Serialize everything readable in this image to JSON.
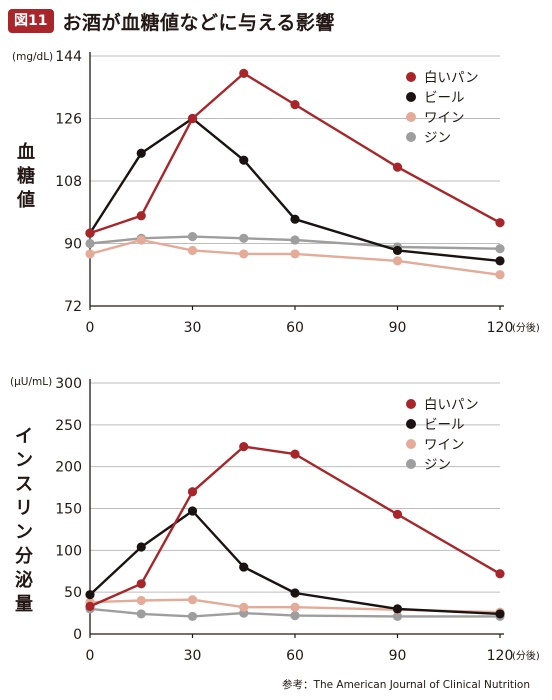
{
  "header": {
    "badge": "図11",
    "title": "お酒が血糖値などに与える影響"
  },
  "source": "参考：The American Journal of Clinical Nutrition",
  "colors": {
    "white_bread": "#a8262a",
    "beer": "#1a1311",
    "wine": "#e3ab98",
    "gin": "#9e9e9e",
    "axis": "#231815",
    "grid": "#bdbdbd"
  },
  "chart_data": [
    {
      "type": "line",
      "title": "",
      "unit": "(mg/dL)",
      "ylabel": "血糖値",
      "x_suffix": "(分後)",
      "x": [
        0,
        15,
        30,
        45,
        60,
        90,
        120
      ],
      "xticks": [
        0,
        30,
        60,
        90,
        120
      ],
      "xlim": [
        0,
        120
      ],
      "yticks": [
        72,
        90,
        108,
        126,
        144
      ],
      "ylim": [
        72,
        144
      ],
      "grid": "horizontal",
      "legend_position": "top-right",
      "series": [
        {
          "name": "白いパン",
          "color": "#a8262a",
          "values": [
            93,
            98,
            126,
            139,
            130,
            112,
            96
          ]
        },
        {
          "name": "ビール",
          "color": "#1a1311",
          "values": [
            93,
            116,
            126,
            114,
            97,
            88,
            85
          ]
        },
        {
          "name": "ワイン",
          "color": "#e3ab98",
          "values": [
            87,
            91,
            88,
            87,
            87,
            85,
            81
          ]
        },
        {
          "name": "ジン",
          "color": "#9e9e9e",
          "values": [
            90,
            91.5,
            92,
            91.5,
            91,
            89,
            88.5
          ]
        }
      ]
    },
    {
      "type": "line",
      "title": "",
      "unit": "(μU/mL)",
      "ylabel": "インスリン分泌量",
      "x_suffix": "(分後)",
      "x": [
        0,
        15,
        30,
        45,
        60,
        90,
        120
      ],
      "xticks": [
        0,
        30,
        60,
        90,
        120
      ],
      "xlim": [
        0,
        120
      ],
      "yticks": [
        0,
        50,
        100,
        150,
        200,
        250,
        300
      ],
      "ylim": [
        0,
        300
      ],
      "grid": "horizontal",
      "legend_position": "top-right",
      "series": [
        {
          "name": "白いパン",
          "color": "#a8262a",
          "values": [
            33,
            60,
            170,
            224,
            215,
            143,
            72
          ]
        },
        {
          "name": "ビール",
          "color": "#1a1311",
          "values": [
            47,
            104,
            147,
            80,
            49,
            30,
            24
          ]
        },
        {
          "name": "ワイン",
          "color": "#e3ab98",
          "values": [
            38,
            40,
            41,
            32,
            32,
            29,
            26
          ]
        },
        {
          "name": "ジン",
          "color": "#9e9e9e",
          "values": [
            30,
            24,
            21,
            25,
            22,
            21,
            21
          ]
        }
      ]
    }
  ]
}
